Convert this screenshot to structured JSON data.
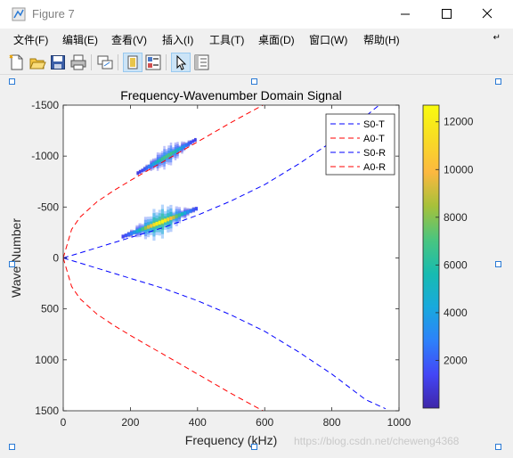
{
  "window": {
    "title": "Figure 7",
    "accent_color": "#2a7ad5"
  },
  "menubar": {
    "items": [
      {
        "label": "文件(F)"
      },
      {
        "label": "编辑(E)"
      },
      {
        "label": "查看(V)"
      },
      {
        "label": "插入(I)"
      },
      {
        "label": "工具(T)"
      },
      {
        "label": "桌面(D)"
      },
      {
        "label": "窗口(W)"
      },
      {
        "label": "帮助(H)"
      }
    ]
  },
  "toolbar": {
    "buttons": [
      {
        "icon": "new-figure-icon"
      },
      {
        "icon": "open-file-icon"
      },
      {
        "icon": "save-icon"
      },
      {
        "icon": "print-icon"
      },
      {
        "icon": "link-plot-icon"
      },
      {
        "icon": "hide-plot-tools-icon"
      },
      {
        "icon": "show-plot-tools-icon"
      },
      {
        "icon": "edit-plot-pointer-icon"
      },
      {
        "icon": "open-property-inspector-icon"
      }
    ]
  },
  "chart_data": {
    "type": "heatmap",
    "title": "Frequency-Wavenumber Domain Signal",
    "xlabel": "Frequency (kHz)",
    "ylabel": "Wave Number",
    "xlim": [
      0,
      1000
    ],
    "ylim": [
      -1500,
      1500
    ],
    "y_reversed": true,
    "xticks": [
      "0",
      "200",
      "400",
      "600",
      "800",
      "1000"
    ],
    "yticks": [
      "-1500",
      "-1000",
      "-500",
      "0",
      "500",
      "1000",
      "1500"
    ],
    "legend_position": "top-right",
    "series": [
      {
        "name": "S0-T",
        "color": "#0000ff",
        "style": "dashed",
        "x": [
          0,
          100,
          200,
          300,
          400,
          500,
          600,
          700,
          800,
          900,
          1000
        ],
        "y": [
          0,
          -100,
          -200,
          -300,
          -420,
          -560,
          -720,
          -920,
          -1140,
          -1390,
          -1660
        ]
      },
      {
        "name": "A0-T",
        "color": "#ff0000",
        "style": "dashed",
        "x": [
          0,
          25,
          50,
          100,
          150,
          200,
          300,
          400,
          500,
          600
        ],
        "y": [
          0,
          -280,
          -400,
          -550,
          -660,
          -760,
          -950,
          -1140,
          -1330,
          -1510
        ]
      },
      {
        "name": "S0-R",
        "color": "#0000ff",
        "style": "dashed",
        "x": [
          0,
          100,
          200,
          300,
          400,
          500,
          600,
          700,
          800,
          900,
          960
        ],
        "y": [
          0,
          100,
          200,
          300,
          420,
          560,
          720,
          920,
          1140,
          1390,
          1480
        ]
      },
      {
        "name": "A0-R",
        "color": "#ff0000",
        "style": "dashed",
        "x": [
          0,
          25,
          50,
          100,
          150,
          200,
          300,
          400,
          500,
          600
        ],
        "y": [
          0,
          280,
          400,
          550,
          660,
          760,
          950,
          1140,
          1330,
          1510
        ]
      }
    ],
    "hotspots": [
      {
        "x": 310,
        "y": -1000,
        "intensity": 0.55,
        "fx": 55,
        "fy": 150
      },
      {
        "x": 290,
        "y": -350,
        "intensity": 1.0,
        "fx": 70,
        "fy": 120
      }
    ],
    "colorbar": {
      "range": [
        0,
        12700
      ],
      "ticks": [
        "2000",
        "4000",
        "6000",
        "8000",
        "10000",
        "12000"
      ],
      "colormap": [
        "#3e26a8",
        "#4346f6",
        "#2d81fa",
        "#18a9dd",
        "#17bbb0",
        "#4ac57f",
        "#a6c13a",
        "#fcb840",
        "#f8dc24",
        "#f9fb0e"
      ]
    }
  },
  "watermark": "https://blog.csdn.net/cheweng4368"
}
